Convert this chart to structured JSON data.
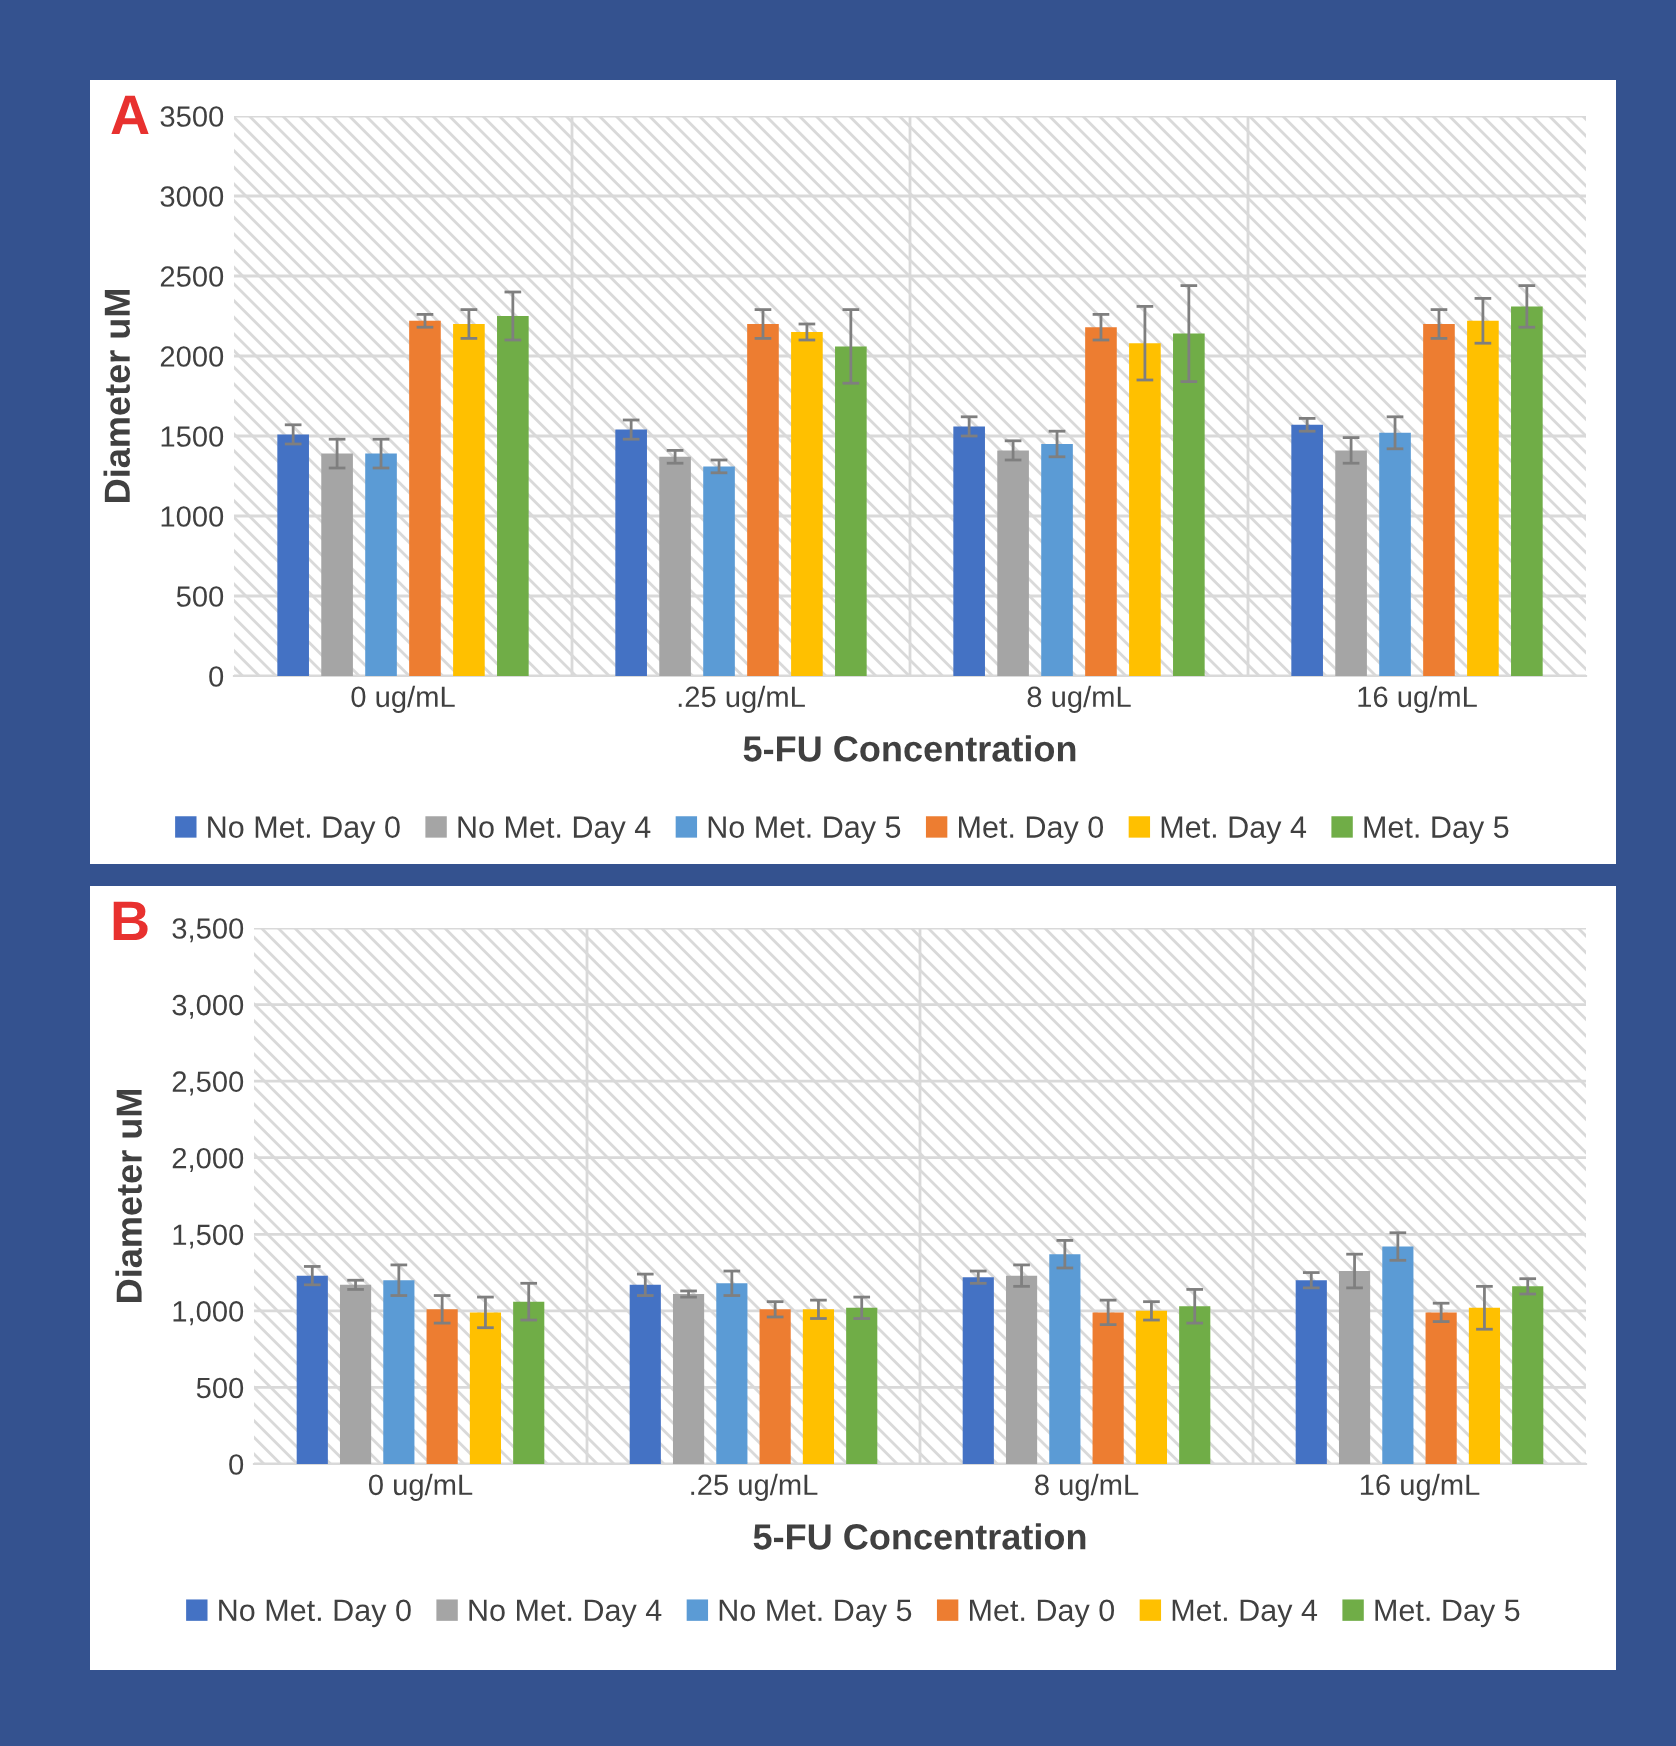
{
  "chart_data": [
    {
      "type": "bar",
      "annotations": [
        "A"
      ],
      "xlabel": "5-FU Concentration",
      "ylabel": "Diameter uM",
      "categories": [
        "0 ug/mL",
        ".25 ug/mL",
        "8 ug/mL",
        "16 ug/mL"
      ],
      "ylim": [
        0,
        3500
      ],
      "yticks": [
        0,
        500,
        1000,
        1500,
        2000,
        2500,
        3000,
        3500
      ],
      "grid": true,
      "legend": "bottom",
      "series": [
        {
          "name": "No Met. Day 0",
          "color": "#4472c4",
          "values": [
            1510,
            1540,
            1560,
            1570
          ],
          "errors": [
            60,
            60,
            60,
            40
          ]
        },
        {
          "name": "No Met. Day 4",
          "color": "#a5a5a5",
          "values": [
            1390,
            1370,
            1410,
            1410
          ],
          "errors": [
            90,
            40,
            60,
            80
          ]
        },
        {
          "name": "No Met. Day 5",
          "color": "#5b9bd5",
          "values": [
            1390,
            1310,
            1450,
            1520
          ],
          "errors": [
            90,
            40,
            80,
            100
          ]
        },
        {
          "name": "Met. Day 0",
          "color": "#ed7d31",
          "values": [
            2220,
            2200,
            2180,
            2200
          ],
          "errors": [
            40,
            90,
            80,
            90
          ]
        },
        {
          "name": "Met. Day 4",
          "color": "#ffc000",
          "values": [
            2200,
            2150,
            2080,
            2220
          ],
          "errors": [
            90,
            50,
            230,
            140
          ]
        },
        {
          "name": "Met. Day 5",
          "color": "#70ad47",
          "values": [
            2250,
            2060,
            2140,
            2310
          ],
          "errors": [
            150,
            230,
            300,
            130
          ]
        }
      ]
    },
    {
      "type": "bar",
      "annotations": [
        "B"
      ],
      "xlabel": "5-FU Concentration",
      "ylabel": "Diameter uM",
      "categories": [
        "0 ug/mL",
        ".25 ug/mL",
        "8 ug/mL",
        "16 ug/mL"
      ],
      "ylim": [
        0,
        3500
      ],
      "yticks": [
        0,
        500,
        {
          "value": 1000,
          "label": "1,000"
        },
        {
          "value": 1500,
          "label": "1,500"
        },
        {
          "value": 2000,
          "label": "2,000"
        },
        {
          "value": 2500,
          "label": "2,500"
        },
        {
          "value": 3000,
          "label": "3,000"
        },
        {
          "value": 3500,
          "label": "3,500"
        }
      ],
      "grid": true,
      "legend": "bottom",
      "series": [
        {
          "name": "No Met. Day 0",
          "color": "#4472c4",
          "values": [
            1230,
            1170,
            1220,
            1200
          ],
          "errors": [
            60,
            70,
            40,
            50
          ]
        },
        {
          "name": "No Met. Day 4",
          "color": "#a5a5a5",
          "values": [
            1170,
            1110,
            1230,
            1260
          ],
          "errors": [
            30,
            20,
            70,
            110
          ]
        },
        {
          "name": "No Met. Day 5",
          "color": "#5b9bd5",
          "values": [
            1200,
            1180,
            1370,
            1420
          ],
          "errors": [
            100,
            80,
            90,
            90
          ]
        },
        {
          "name": "Met. Day 0",
          "color": "#ed7d31",
          "values": [
            1010,
            1010,
            990,
            990
          ],
          "errors": [
            90,
            50,
            80,
            60
          ]
        },
        {
          "name": "Met. Day 4",
          "color": "#ffc000",
          "values": [
            990,
            1010,
            1000,
            1020
          ],
          "errors": [
            100,
            60,
            60,
            140
          ]
        },
        {
          "name": "Met. Day 5",
          "color": "#70ad47",
          "values": [
            1060,
            1020,
            1030,
            1160
          ],
          "errors": [
            120,
            70,
            110,
            50
          ]
        }
      ]
    }
  ]
}
